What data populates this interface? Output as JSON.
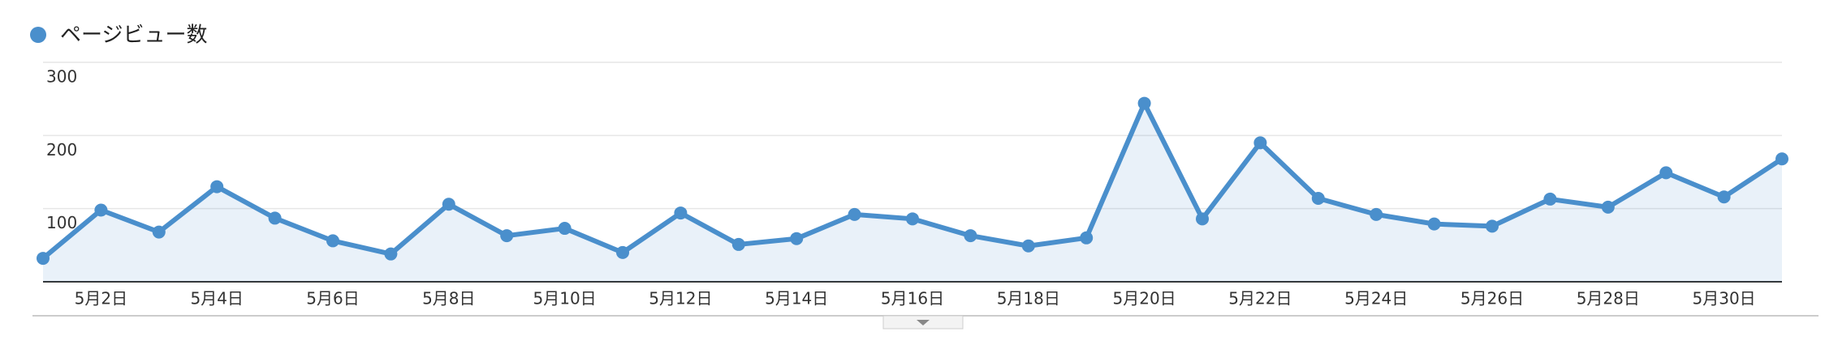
{
  "chart_data": {
    "type": "line",
    "categories": [
      null,
      "5月2日",
      null,
      "5月4日",
      null,
      "5月6日",
      null,
      "5月8日",
      null,
      "5月10日",
      null,
      "5月12日",
      null,
      "5月14日",
      null,
      "5月16日",
      null,
      "5月18日",
      null,
      "5月20日",
      null,
      "5月22日",
      null,
      "5月24日",
      null,
      "5月26日",
      null,
      "5月28日",
      null,
      "5月30日",
      null
    ],
    "series": [
      {
        "name": "ページビュー数",
        "color": "#4a8fcc",
        "values": [
          32,
          98,
          68,
          130,
          87,
          56,
          38,
          106,
          63,
          73,
          40,
          94,
          51,
          59,
          92,
          86,
          63,
          49,
          60,
          244,
          86,
          190,
          114,
          92,
          79,
          76,
          113,
          102,
          149,
          116,
          168
        ]
      }
    ],
    "ylim": [
      0,
      300
    ],
    "yticks": [
      100,
      200,
      300
    ],
    "grid": true,
    "area": true
  }
}
